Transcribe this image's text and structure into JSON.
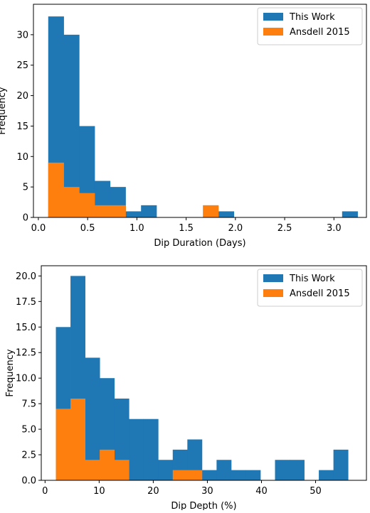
{
  "chart_data": [
    {
      "type": "bar",
      "subtype": "histogram",
      "title": "",
      "xlabel": "Dip Duration (Days)",
      "ylabel": "Frequency",
      "xlim": [
        -0.05,
        3.33
      ],
      "ylim": [
        0,
        35
      ],
      "xticks": [
        0.0,
        0.5,
        1.0,
        1.5,
        2.0,
        2.5,
        3.0
      ],
      "xtick_labels": [
        "0.0",
        "0.5",
        "1.0",
        "1.5",
        "2.0",
        "2.5",
        "3.0"
      ],
      "yticks": [
        0,
        5,
        10,
        15,
        20,
        25,
        30
      ],
      "ytick_labels": [
        "0",
        "5",
        "10",
        "15",
        "20",
        "25",
        "30"
      ],
      "legend_position": "top-right",
      "series": [
        {
          "name": "This Work",
          "color": "#1f77b4",
          "bins": [
            [
              0.1,
              0.257
            ],
            [
              0.257,
              0.414
            ],
            [
              0.414,
              0.571
            ],
            [
              0.571,
              0.728
            ],
            [
              0.728,
              0.885
            ],
            [
              0.885,
              1.042
            ],
            [
              1.042,
              1.199
            ],
            [
              1.199,
              1.356
            ],
            [
              1.356,
              1.513
            ],
            [
              1.513,
              1.67
            ],
            [
              1.67,
              1.827
            ],
            [
              1.827,
              1.984
            ],
            [
              1.984,
              2.141
            ],
            [
              2.141,
              2.298
            ],
            [
              2.298,
              2.455
            ],
            [
              2.455,
              2.612
            ],
            [
              2.612,
              2.769
            ],
            [
              2.769,
              2.926
            ],
            [
              2.926,
              3.083
            ],
            [
              3.083,
              3.24
            ]
          ],
          "values": [
            33,
            30,
            15,
            6,
            5,
            1,
            2,
            0,
            0,
            0,
            0,
            1,
            0,
            0,
            0,
            0,
            0,
            0,
            0,
            1
          ]
        },
        {
          "name": "Ansdell 2015",
          "color": "#ff7f0e",
          "bins": [
            [
              0.1,
              0.257
            ],
            [
              0.257,
              0.414
            ],
            [
              0.414,
              0.571
            ],
            [
              0.571,
              0.728
            ],
            [
              0.728,
              0.885
            ],
            [
              1.67,
              1.827
            ]
          ],
          "values": [
            9,
            5,
            4,
            2,
            2,
            2
          ]
        }
      ]
    },
    {
      "type": "bar",
      "subtype": "histogram",
      "title": "",
      "xlabel": "Dip Depth (%)",
      "ylabel": "Frequency",
      "xlim": [
        -0.7,
        59.4
      ],
      "ylim": [
        0,
        21
      ],
      "xticks": [
        0,
        10,
        20,
        30,
        40,
        50
      ],
      "xtick_labels": [
        "0",
        "10",
        "20",
        "30",
        "40",
        "50"
      ],
      "yticks": [
        0.0,
        2.5,
        5.0,
        7.5,
        10.0,
        12.5,
        15.0,
        17.5,
        20.0
      ],
      "ytick_labels": [
        "0.0",
        "2.5",
        "5.0",
        "7.5",
        "10.0",
        "12.5",
        "15.0",
        "17.5",
        "20.0"
      ],
      "legend_position": "top-right",
      "series": [
        {
          "name": "This Work",
          "color": "#1f77b4",
          "bins": [
            [
              2.0,
              4.7
            ],
            [
              4.7,
              7.4
            ],
            [
              7.4,
              10.1
            ],
            [
              10.1,
              12.8
            ],
            [
              12.8,
              15.5
            ],
            [
              15.5,
              18.2
            ],
            [
              18.2,
              20.9
            ],
            [
              20.9,
              23.6
            ],
            [
              23.6,
              26.3
            ],
            [
              26.3,
              29.0
            ],
            [
              29.0,
              31.7
            ],
            [
              31.7,
              34.4
            ],
            [
              34.4,
              37.1
            ],
            [
              37.1,
              39.8
            ],
            [
              39.8,
              42.5
            ],
            [
              42.5,
              45.2
            ],
            [
              45.2,
              47.9
            ],
            [
              47.9,
              50.6
            ],
            [
              50.6,
              53.3
            ],
            [
              53.3,
              56.0
            ]
          ],
          "values": [
            15,
            20,
            12,
            10,
            8,
            6,
            6,
            2,
            3,
            4,
            1,
            2,
            1,
            1,
            0,
            2,
            2,
            0,
            1,
            3
          ]
        },
        {
          "name": "Ansdell 2015",
          "color": "#ff7f0e",
          "bins": [
            [
              2.0,
              4.7
            ],
            [
              4.7,
              7.4
            ],
            [
              7.4,
              10.1
            ],
            [
              10.1,
              12.8
            ],
            [
              12.8,
              15.5
            ],
            [
              23.6,
              26.3
            ],
            [
              26.3,
              29.0
            ]
          ],
          "values": [
            7,
            8,
            2,
            3,
            2,
            1,
            1
          ]
        }
      ]
    }
  ]
}
